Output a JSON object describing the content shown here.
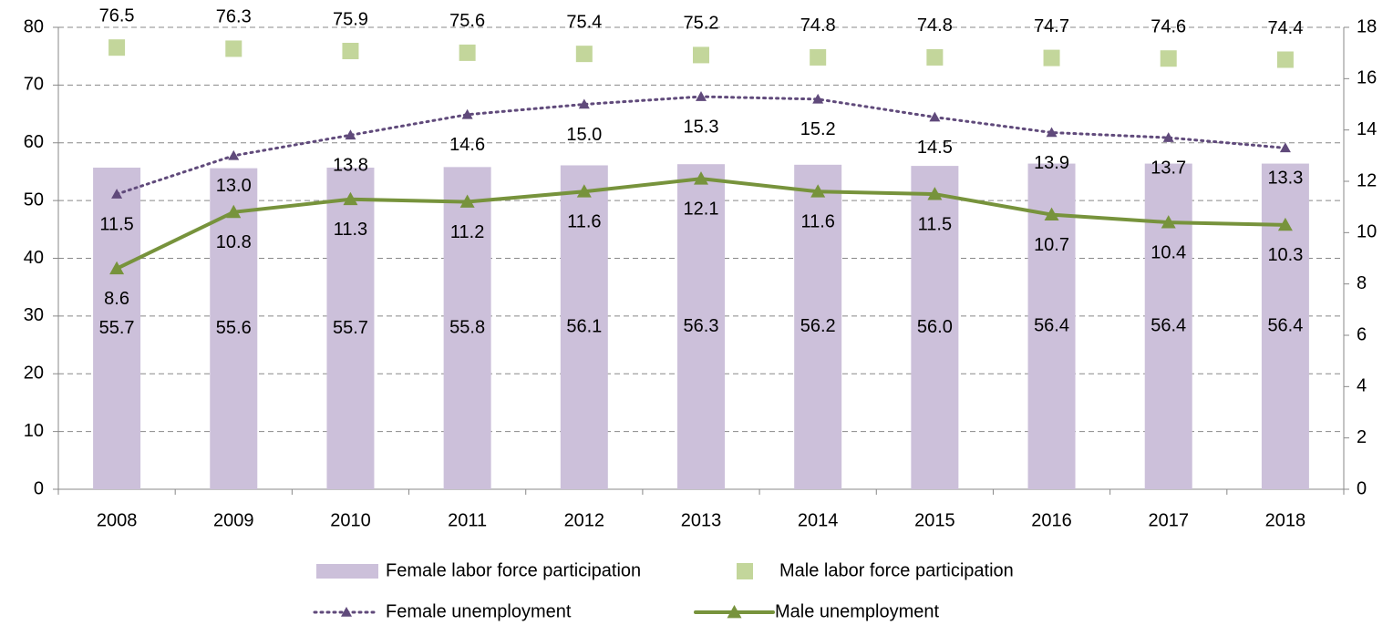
{
  "chart_data": {
    "type": "combo",
    "categories": [
      "2008",
      "2009",
      "2010",
      "2011",
      "2012",
      "2013",
      "2014",
      "2015",
      "2016",
      "2017",
      "2018"
    ],
    "ylim": [
      0,
      80
    ],
    "yticks": [
      0,
      10,
      20,
      30,
      40,
      50,
      60,
      70,
      80
    ],
    "y2lim": [
      0,
      18
    ],
    "y2ticks": [
      0,
      2,
      4,
      6,
      8,
      10,
      12,
      14,
      16,
      18
    ],
    "grid": true,
    "series": [
      {
        "name": "Female labor force participation",
        "type": "bar",
        "color": "#ccc0da",
        "values": [
          55.7,
          55.6,
          55.7,
          55.8,
          56.1,
          56.3,
          56.2,
          56.0,
          56.4,
          56.4,
          56.4
        ],
        "value_labels": [
          "55.7",
          "55.6",
          "55.7",
          "55.8",
          "56.1",
          "56.3",
          "56.2",
          "56.0",
          "56.4",
          "56.4",
          "56.4"
        ]
      },
      {
        "name": "Male labor force participation",
        "type": "square",
        "color": "#c3d69b",
        "values": [
          76.5,
          76.3,
          75.9,
          75.6,
          75.4,
          75.2,
          74.8,
          74.8,
          74.7,
          74.6,
          74.4
        ],
        "value_labels": [
          "76.5",
          "76.3",
          "75.9",
          "75.6",
          "75.4",
          "75.2",
          "74.8",
          "74.8",
          "74.7",
          "74.6",
          "74.4"
        ]
      },
      {
        "name": "Female unemployment",
        "type": "dotted-line",
        "color": "#604a7b",
        "axis": "y2",
        "values": [
          11.5,
          13.0,
          13.8,
          14.6,
          15.0,
          15.3,
          15.2,
          14.5,
          13.9,
          13.7,
          13.3
        ],
        "value_labels": [
          "11.5",
          "13.0",
          "13.8",
          "14.6",
          "15.0",
          "15.3",
          "15.2",
          "14.5",
          "13.9",
          "13.7",
          "13.3"
        ]
      },
      {
        "name": "Male unemployment",
        "type": "line",
        "color": "#77933c",
        "axis": "y2",
        "values": [
          8.6,
          10.8,
          11.3,
          11.2,
          11.6,
          12.1,
          11.6,
          11.5,
          10.7,
          10.4,
          10.3
        ],
        "value_labels": [
          "8.6",
          "10.8",
          "11.3",
          "11.2",
          "11.6",
          "12.1",
          "11.6",
          "11.5",
          "10.7",
          "10.4",
          "10.3"
        ]
      }
    ]
  }
}
